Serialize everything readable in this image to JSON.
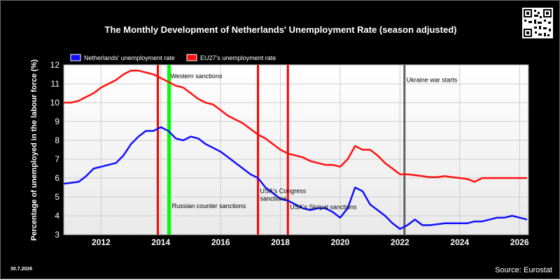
{
  "chart_data": {
    "type": "line",
    "title": "The Monthly Development of Netherlands' Unemployment Rate (season adjusted)",
    "ylabel": "Percentage of unemployed in the labour force (%)",
    "xlabel": "",
    "xlim": [
      2010.75,
      2026.3
    ],
    "ylim": [
      3,
      12
    ],
    "x_ticks": [
      "2012",
      "2014",
      "2016",
      "2018",
      "2020",
      "2022",
      "2024",
      "2026"
    ],
    "y_ticks": [
      "3",
      "4",
      "5",
      "6",
      "7",
      "8",
      "9",
      "10",
      "11",
      "12"
    ],
    "grid": true,
    "legend": "top-left",
    "series": [
      {
        "name": "Netherlands' unemployment rate",
        "color": "#1010ff",
        "points": [
          [
            2010.75,
            5.7
          ],
          [
            2011.0,
            5.75
          ],
          [
            2011.25,
            5.8
          ],
          [
            2011.5,
            6.1
          ],
          [
            2011.75,
            6.5
          ],
          [
            2012.0,
            6.6
          ],
          [
            2012.25,
            6.7
          ],
          [
            2012.5,
            6.8
          ],
          [
            2012.75,
            7.2
          ],
          [
            2013.0,
            7.8
          ],
          [
            2013.25,
            8.2
          ],
          [
            2013.5,
            8.5
          ],
          [
            2013.75,
            8.5
          ],
          [
            2014.0,
            8.7
          ],
          [
            2014.25,
            8.5
          ],
          [
            2014.5,
            8.1
          ],
          [
            2014.75,
            8.0
          ],
          [
            2015.0,
            8.2
          ],
          [
            2015.25,
            8.1
          ],
          [
            2015.5,
            7.8
          ],
          [
            2015.75,
            7.6
          ],
          [
            2016.0,
            7.4
          ],
          [
            2016.25,
            7.1
          ],
          [
            2016.5,
            6.8
          ],
          [
            2016.75,
            6.5
          ],
          [
            2017.0,
            6.2
          ],
          [
            2017.25,
            6.0
          ],
          [
            2017.5,
            5.5
          ],
          [
            2017.75,
            5.2
          ],
          [
            2018.0,
            4.9
          ],
          [
            2018.25,
            4.8
          ],
          [
            2018.5,
            4.6
          ],
          [
            2018.75,
            4.4
          ],
          [
            2019.0,
            4.3
          ],
          [
            2019.25,
            4.4
          ],
          [
            2019.5,
            4.4
          ],
          [
            2019.75,
            4.2
          ],
          [
            2020.0,
            3.9
          ],
          [
            2020.25,
            4.4
          ],
          [
            2020.5,
            5.5
          ],
          [
            2020.75,
            5.3
          ],
          [
            2021.0,
            4.6
          ],
          [
            2021.25,
            4.3
          ],
          [
            2021.5,
            4.0
          ],
          [
            2021.75,
            3.6
          ],
          [
            2022.0,
            3.3
          ],
          [
            2022.25,
            3.5
          ],
          [
            2022.5,
            3.8
          ],
          [
            2022.75,
            3.5
          ],
          [
            2023.0,
            3.5
          ],
          [
            2023.25,
            3.55
          ],
          [
            2023.5,
            3.6
          ],
          [
            2023.75,
            3.6
          ],
          [
            2024.0,
            3.6
          ],
          [
            2024.25,
            3.6
          ],
          [
            2024.5,
            3.7
          ],
          [
            2024.75,
            3.7
          ],
          [
            2025.0,
            3.8
          ],
          [
            2025.25,
            3.9
          ],
          [
            2025.5,
            3.9
          ],
          [
            2025.75,
            4.0
          ],
          [
            2026.0,
            3.9
          ],
          [
            2026.25,
            3.8
          ]
        ]
      },
      {
        "name": "EU27's unemployment rate",
        "color": "#ff1010",
        "points": [
          [
            2010.75,
            10.0
          ],
          [
            2011.0,
            10.0
          ],
          [
            2011.25,
            10.1
          ],
          [
            2011.5,
            10.3
          ],
          [
            2011.75,
            10.5
          ],
          [
            2012.0,
            10.8
          ],
          [
            2012.25,
            11.0
          ],
          [
            2012.5,
            11.2
          ],
          [
            2012.75,
            11.5
          ],
          [
            2013.0,
            11.7
          ],
          [
            2013.25,
            11.7
          ],
          [
            2013.5,
            11.6
          ],
          [
            2013.75,
            11.5
          ],
          [
            2014.0,
            11.3
          ],
          [
            2014.25,
            11.1
          ],
          [
            2014.5,
            10.9
          ],
          [
            2014.75,
            10.8
          ],
          [
            2015.0,
            10.5
          ],
          [
            2015.25,
            10.2
          ],
          [
            2015.5,
            10.0
          ],
          [
            2015.75,
            9.9
          ],
          [
            2016.0,
            9.6
          ],
          [
            2016.25,
            9.3
          ],
          [
            2016.5,
            9.1
          ],
          [
            2016.75,
            8.9
          ],
          [
            2017.0,
            8.6
          ],
          [
            2017.25,
            8.3
          ],
          [
            2017.5,
            8.1
          ],
          [
            2017.75,
            7.8
          ],
          [
            2018.0,
            7.5
          ],
          [
            2018.25,
            7.3
          ],
          [
            2018.5,
            7.2
          ],
          [
            2018.75,
            7.1
          ],
          [
            2019.0,
            6.9
          ],
          [
            2019.25,
            6.8
          ],
          [
            2019.5,
            6.7
          ],
          [
            2019.75,
            6.7
          ],
          [
            2020.0,
            6.6
          ],
          [
            2020.25,
            7.0
          ],
          [
            2020.5,
            7.7
          ],
          [
            2020.75,
            7.5
          ],
          [
            2021.0,
            7.5
          ],
          [
            2021.25,
            7.2
          ],
          [
            2021.5,
            6.8
          ],
          [
            2021.75,
            6.5
          ],
          [
            2022.0,
            6.2
          ],
          [
            2022.25,
            6.2
          ],
          [
            2022.5,
            6.15
          ],
          [
            2022.75,
            6.1
          ],
          [
            2023.0,
            6.05
          ],
          [
            2023.25,
            6.05
          ],
          [
            2023.5,
            6.1
          ],
          [
            2023.75,
            6.05
          ],
          [
            2024.0,
            6.0
          ],
          [
            2024.25,
            5.95
          ],
          [
            2024.5,
            5.8
          ],
          [
            2024.75,
            6.0
          ],
          [
            2025.0,
            6.0
          ],
          [
            2025.25,
            6.0
          ],
          [
            2025.5,
            6.0
          ],
          [
            2025.75,
            6.0
          ],
          [
            2026.0,
            6.0
          ],
          [
            2026.25,
            6.0
          ]
        ]
      }
    ],
    "events": [
      {
        "x": 2013.9,
        "color": "#ff0000",
        "label": "",
        "label_y": null
      },
      {
        "x": 2014.25,
        "color": "#00ff00",
        "label": "Western sanctions",
        "label_y": 11.3
      },
      {
        "x": 2014.3,
        "color": "#00ff00",
        "label": "Russian counter sanctions",
        "label_y": 4.4
      },
      {
        "x": 2017.25,
        "color": "#ff0000",
        "label": "USA's Congress\nsanctions",
        "label_y": 5.2
      },
      {
        "x": 2018.25,
        "color": "#ff0000",
        "label": "USA's Skripal sanctions",
        "label_y": 4.35
      },
      {
        "x": 2022.15,
        "color": "#606060",
        "label": "Ukraine war starts",
        "label_y": 11.1
      }
    ],
    "footer_date": "30.7.2026",
    "footer_source": "Source: Eurostat"
  }
}
